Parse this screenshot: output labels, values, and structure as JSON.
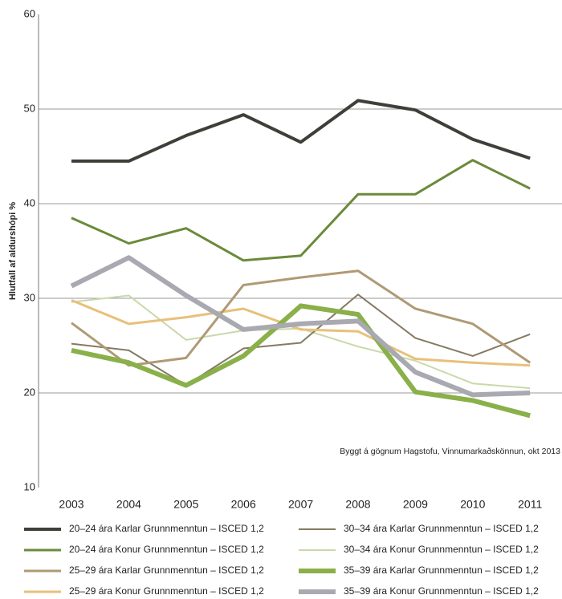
{
  "chart_data": {
    "type": "line",
    "ylabel": "Hlutfall af aldurshópi %",
    "annotation": "Byggt á gögnum Hagstofu, Vinnumarkaðskönnun, okt 2013",
    "categories": [
      "2003",
      "2004",
      "2005",
      "2006",
      "2007",
      "2008",
      "2009",
      "2010",
      "2011"
    ],
    "ylim": [
      10,
      60
    ],
    "yticks": [
      10,
      20,
      30,
      40,
      50,
      60
    ],
    "grid": true,
    "series": [
      {
        "name": "20–24 ára Karlar Grunnmenntun – ISCED 1,2",
        "color": "#3f3f3a",
        "width": 4,
        "values": [
          44.5,
          44.5,
          47.2,
          49.4,
          46.5,
          50.9,
          49.9,
          46.8,
          44.8
        ]
      },
      {
        "name": "20–24 ára Konur Grunnmenntun – ISCED 1,2",
        "color": "#6b8a3a",
        "width": 3,
        "values": [
          38.5,
          35.8,
          37.4,
          34.0,
          34.5,
          41.0,
          41.0,
          44.6,
          41.6
        ]
      },
      {
        "name": "25–29 ára Karlar Grunnmenntun – ISCED 1,2",
        "color": "#b09a74",
        "width": 3,
        "values": [
          27.4,
          22.9,
          23.7,
          31.4,
          32.2,
          32.9,
          28.9,
          27.3,
          23.2
        ]
      },
      {
        "name": "25–29 ára Konur Grunnmenntun – ISCED 1,2",
        "color": "#e8c07a",
        "width": 3,
        "values": [
          29.8,
          27.3,
          28.0,
          28.9,
          26.7,
          26.5,
          23.6,
          23.2,
          22.9
        ]
      },
      {
        "name": "30–34 ára Karlar Grunnmenntun – ISCED 1,2",
        "color": "#857a62",
        "width": 2,
        "values": [
          25.2,
          24.5,
          20.8,
          24.7,
          25.3,
          30.4,
          25.8,
          23.9,
          26.2
        ]
      },
      {
        "name": "30–34 ára Konur Grunnmenntun – ISCED 1,2",
        "color": "#c9d9a9",
        "width": 2,
        "values": [
          29.6,
          30.3,
          25.6,
          26.6,
          26.8,
          24.9,
          23.4,
          21.0,
          20.5
        ]
      },
      {
        "name": "35–39 ára Karlar Grunnmenntun – ISCED 1,2",
        "color": "#8ab04a",
        "width": 6,
        "values": [
          24.5,
          23.2,
          20.8,
          23.9,
          29.2,
          28.3,
          20.1,
          19.2,
          17.6
        ]
      },
      {
        "name": "35–39 ára Konur Grunnmenntun – ISCED 1,2",
        "color": "#a9a9b1",
        "width": 6,
        "values": [
          31.3,
          34.3,
          30.3,
          26.7,
          27.3,
          27.6,
          22.2,
          19.8,
          20.0
        ]
      }
    ]
  }
}
